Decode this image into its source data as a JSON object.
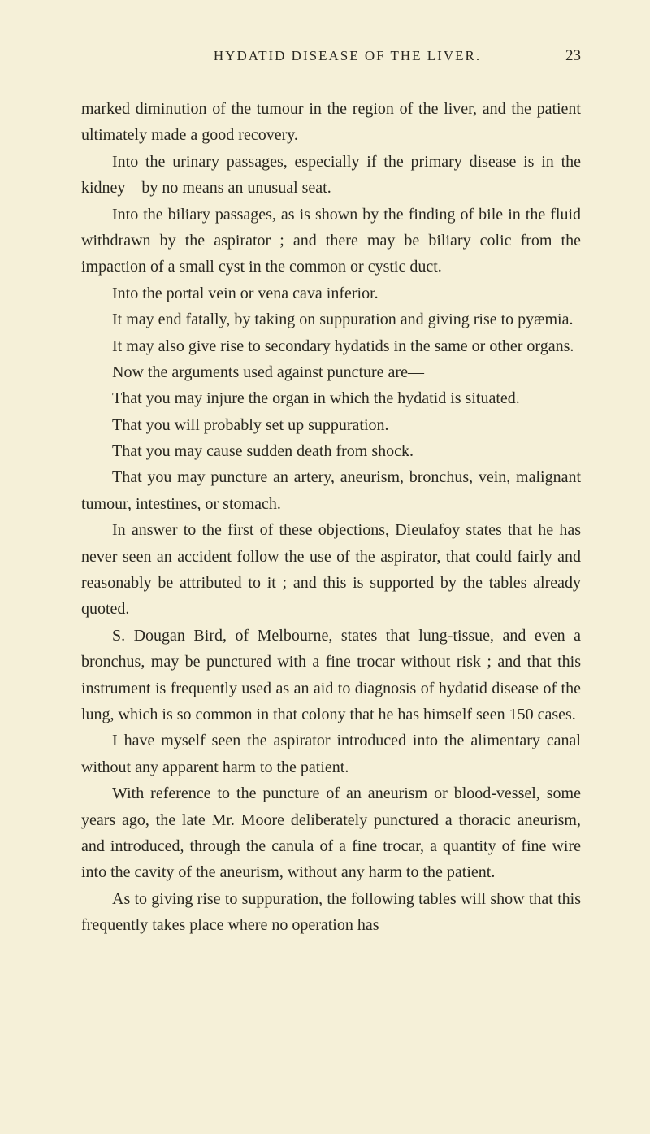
{
  "header": {
    "title": "HYDATID DISEASE OF THE LIVER.",
    "page_number": "23"
  },
  "paragraphs": [
    {
      "text": "marked diminution of the tumour in the region of the liver, and the patient ultimately made a good recovery.",
      "indent": false
    },
    {
      "text": "Into the urinary passages, especially if the primary disease is in the kidney—by no means an unusual seat.",
      "indent": true
    },
    {
      "text": "Into the biliary passages, as is shown by the finding of bile in the fluid withdrawn by the aspirator ; and there may be biliary colic from the impaction of a small cyst in the common or cystic duct.",
      "indent": true
    },
    {
      "text": "Into the portal vein or vena cava inferior.",
      "indent": true
    },
    {
      "text": "It may end fatally, by taking on suppuration and giving rise to pyæmia.",
      "indent": true
    },
    {
      "text": "It may also give rise to secondary hydatids in the same or other organs.",
      "indent": true
    },
    {
      "text": "Now the arguments used against puncture are—",
      "indent": true
    },
    {
      "text": "That you may injure the organ in which the hydatid is situated.",
      "indent": true
    },
    {
      "text": "That you will probably set up suppuration.",
      "indent": true
    },
    {
      "text": "That you may cause sudden death from shock.",
      "indent": true
    },
    {
      "text": "That you may puncture an artery, aneurism, bronchus, vein, malignant tumour, intestines, or stomach.",
      "indent": true
    },
    {
      "text": "In answer to the first of these objections, Dieulafoy states that he has never seen an accident follow the use of the aspirator, that could fairly and reasonably be attributed to it ; and this is supported by the tables already quoted.",
      "indent": true
    },
    {
      "text": "S. Dougan Bird, of Melbourne, states that lung-tissue, and even a bronchus, may be punctured with a fine trocar without risk ; and that this instrument is frequently used as an aid to diagnosis of hydatid disease of the lung, which is so common in that colony that he has himself seen 150 cases.",
      "indent": true
    },
    {
      "text": "I have myself seen the aspirator introduced into the alimentary canal without any apparent harm to the patient.",
      "indent": true
    },
    {
      "text": "With reference to the puncture of an aneurism or blood-vessel, some years ago, the late Mr. Moore deliberately punctured a thoracic aneurism, and introduced, through the canula of a fine trocar, a quantity of fine wire into the cavity of the aneurism, without any harm to the patient.",
      "indent": true
    },
    {
      "text": "As to giving rise to suppuration, the following tables will show that this frequently takes place where no operation has",
      "indent": true
    }
  ]
}
